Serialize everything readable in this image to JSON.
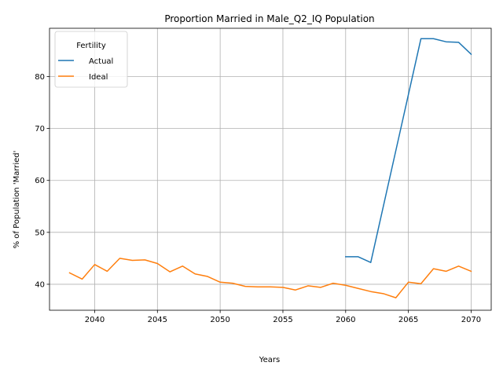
{
  "chart_data": {
    "type": "line",
    "title": "Proportion Married in Male_Q2_IQ Population",
    "xlabel": "Years",
    "ylabel": "% of Population 'Married'",
    "xlim": [
      2036.4,
      2071.6
    ],
    "ylim": [
      35,
      89.3
    ],
    "xticks": [
      2040,
      2045,
      2050,
      2055,
      2060,
      2065,
      2070
    ],
    "yticks": [
      40,
      50,
      60,
      70,
      80
    ],
    "grid": true,
    "legend": {
      "title": "Fertility",
      "placement": "top-left"
    },
    "series": [
      {
        "name": "Actual",
        "color": "#1f77b4",
        "x": [
          2060,
          2061,
          2062,
          2066,
          2067,
          2068,
          2069,
          2070
        ],
        "y": [
          45.3,
          45.3,
          44.2,
          87.3,
          87.3,
          86.7,
          86.6,
          84.3
        ]
      },
      {
        "name": "Ideal",
        "color": "#ff7f0e",
        "x": [
          2038,
          2039,
          2040,
          2041,
          2042,
          2043,
          2044,
          2045,
          2046,
          2047,
          2048,
          2049,
          2050,
          2051,
          2052,
          2053,
          2054,
          2055,
          2056,
          2057,
          2058,
          2059,
          2060,
          2061,
          2062,
          2063,
          2064,
          2065,
          2066,
          2067,
          2068,
          2069,
          2070
        ],
        "y": [
          42.2,
          41.0,
          43.8,
          42.5,
          45.0,
          44.6,
          44.7,
          44.0,
          42.4,
          43.5,
          42.0,
          41.5,
          40.4,
          40.2,
          39.6,
          39.5,
          39.5,
          39.4,
          38.9,
          39.7,
          39.4,
          40.2,
          39.8,
          39.2,
          38.6,
          38.2,
          37.4,
          40.4,
          40.1,
          43.0,
          42.5,
          43.5,
          42.5
        ]
      }
    ]
  }
}
